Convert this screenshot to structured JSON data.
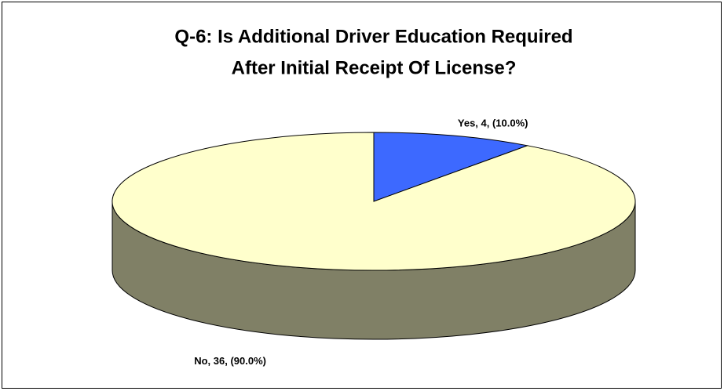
{
  "chart_data": {
    "type": "pie",
    "title": [
      "Q-6: Is Additional Driver Education Required",
      "After Initial Receipt Of License?"
    ],
    "categories": [
      "Yes",
      "No"
    ],
    "values": [
      4,
      36
    ],
    "value_labels": [
      "Yes, 4, (10.0%)",
      "No, 36, (90.0%)"
    ],
    "colors": [
      "#3d69ff",
      "#ffffcc"
    ],
    "side_colors": [
      "#2a47a8",
      "#808066"
    ]
  }
}
